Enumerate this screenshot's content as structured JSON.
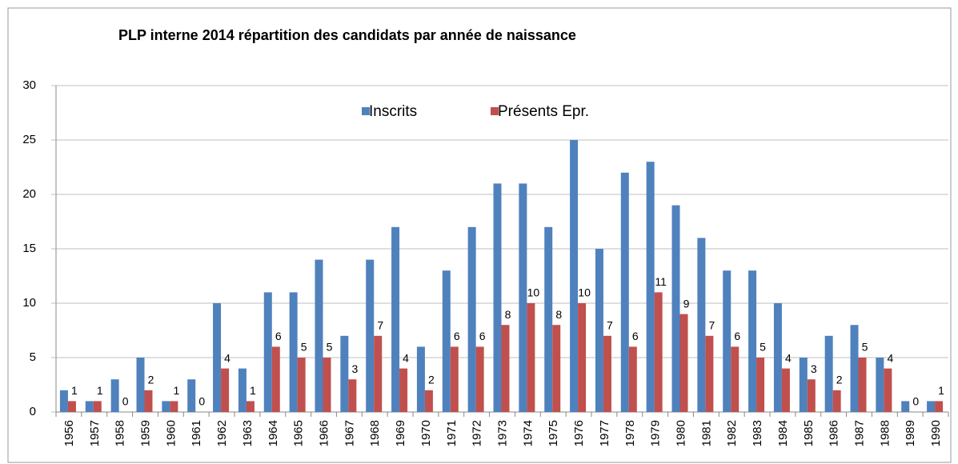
{
  "chart_data": {
    "type": "bar",
    "title": "PLP interne 2014 répartition des candidats par année de naissance",
    "categories": [
      "1956",
      "1957",
      "1958",
      "1959",
      "1960",
      "1961",
      "1962",
      "1963",
      "1964",
      "1965",
      "1966",
      "1967",
      "1968",
      "1969",
      "1970",
      "1971",
      "1972",
      "1973",
      "1974",
      "1975",
      "1976",
      "1977",
      "1978",
      "1979",
      "1980",
      "1981",
      "1982",
      "1983",
      "1984",
      "1985",
      "1986",
      "1987",
      "1988",
      "1989",
      "1990"
    ],
    "series": [
      {
        "name": "Inscrits",
        "color": "#4f81bd",
        "values": [
          2,
          1,
          3,
          5,
          1,
          3,
          10,
          4,
          11,
          11,
          14,
          7,
          14,
          17,
          6,
          13,
          17,
          21,
          21,
          17,
          25,
          15,
          22,
          23,
          19,
          16,
          13,
          13,
          10,
          5,
          7,
          8,
          5,
          1,
          1
        ]
      },
      {
        "name": "Présents Epr.",
        "color": "#c0504d",
        "values": [
          1,
          1,
          0,
          2,
          1,
          0,
          4,
          1,
          6,
          5,
          5,
          3,
          7,
          4,
          2,
          6,
          6,
          8,
          10,
          8,
          10,
          7,
          6,
          11,
          9,
          7,
          6,
          5,
          4,
          3,
          2,
          5,
          4,
          0,
          1
        ],
        "data_labels": true
      }
    ],
    "ylim": [
      0,
      30
    ],
    "yticks": [
      0,
      5,
      10,
      15,
      20,
      25,
      30
    ],
    "grid": true,
    "legend": "top"
  }
}
